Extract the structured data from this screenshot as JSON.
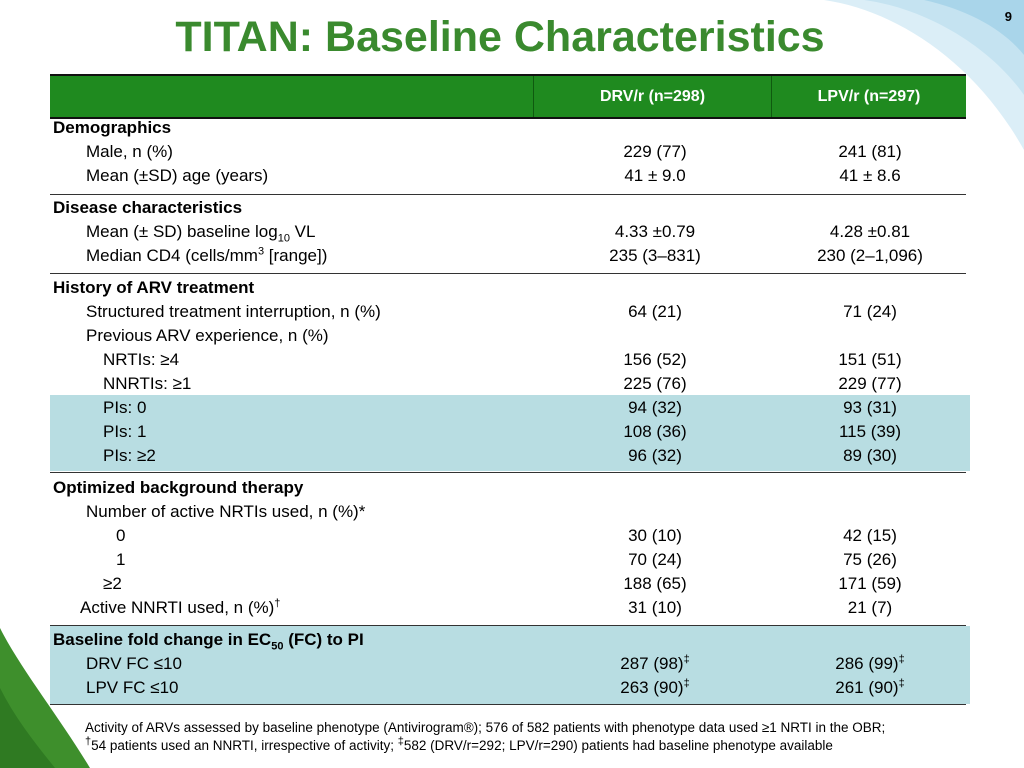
{
  "slide": {
    "page_number": "9",
    "title": "TITAN: Baseline Characteristics"
  },
  "table": {
    "header": {
      "col1": "DRV/r (n=298)",
      "col2": "LPV/r (n=297)"
    },
    "demographics": {
      "heading": "Demographics",
      "male": {
        "label": "Male, n (%)",
        "drv": "229 (77)",
        "lpv": "241 (81)"
      },
      "age": {
        "label": "Mean (±SD) age (years)",
        "drv": "41 ± 9.0",
        "lpv": "41 ± 8.6"
      }
    },
    "disease": {
      "heading": "Disease characteristics",
      "vl": {
        "label_pre": "Mean (± SD) baseline log",
        "label_sub": "10",
        "label_post": " VL",
        "drv": "4.33 ±0.79",
        "lpv": "4.28 ±0.81"
      },
      "cd4": {
        "label_pre": "Median CD4 (cells/mm",
        "label_sup": "3",
        "label_post": " [range])",
        "drv": "235 (3–831)",
        "lpv": "230 (2–1,096)"
      }
    },
    "history": {
      "heading": "History of ARV treatment",
      "sti": {
        "label": "Structured treatment interruption, n (%)",
        "drv": "64 (21)",
        "lpv": "71 (24)"
      },
      "prev": {
        "label": "Previous ARV experience, n (%)"
      },
      "nrti": {
        "label": "NRTIs: ≥4",
        "drv": "156 (52)",
        "lpv": "151 (51)"
      },
      "nnrti": {
        "label": "NNRTIs: ≥1",
        "drv": "225 (76)",
        "lpv": "229 (77)"
      },
      "pi0": {
        "label": "PIs: 0",
        "drv": "94 (32)",
        "lpv": "93 (31)"
      },
      "pi1": {
        "label": "PIs: 1",
        "drv": "108 (36)",
        "lpv": "115 (39)"
      },
      "pi2": {
        "label": "PIs: ≥2",
        "drv": "96 (32)",
        "lpv": "89 (30)"
      }
    },
    "obt": {
      "heading": "Optimized background therapy",
      "active_nrti": {
        "label": "Number of active NRTIs used, n (%)*"
      },
      "n0": {
        "label": "0",
        "drv": "30 (10)",
        "lpv": "42 (15)"
      },
      "n1": {
        "label": "1",
        "drv": "70 (24)",
        "lpv": "75 (26)"
      },
      "n2": {
        "label": "≥2",
        "drv": "188 (65)",
        "lpv": "171 (59)"
      },
      "nnrti": {
        "label": "Active NNRTI used, n (%)",
        "label_sup": "†",
        "drv": "31 (10)",
        "lpv": "21 (7)"
      }
    },
    "fold": {
      "heading_pre": "Baseline fold change in EC",
      "heading_sub": "50",
      "heading_post": " (FC) to PI",
      "drv_fc": {
        "label": "DRV FC ≤10",
        "drv": "287 (98)",
        "drv_sup": "‡",
        "lpv": "286 (99)",
        "lpv_sup": "‡"
      },
      "lpv_fc": {
        "label": "LPV FC ≤10",
        "drv": "263 (90)",
        "drv_sup": "‡",
        "lpv": "261 (90)",
        "lpv_sup": "‡"
      }
    }
  },
  "footnote": {
    "line1": "Activity of ARVs assessed by baseline phenotype (Antivirogram®); 576 of 582 patients with phenotype data used ≥1 NRTI in the OBR;",
    "line2_sup1": "†",
    "line2_a": "54 patients used an NNRTI, irrespective of activity; ",
    "line2_sup2": "‡",
    "line2_b": "582 (DRV/r=292; LPV/r=290) patients had baseline phenotype available"
  },
  "colors": {
    "title_green": "#3a8a2e",
    "header_green": "#1f8a1f",
    "shade_blue": "#b8dde2"
  }
}
